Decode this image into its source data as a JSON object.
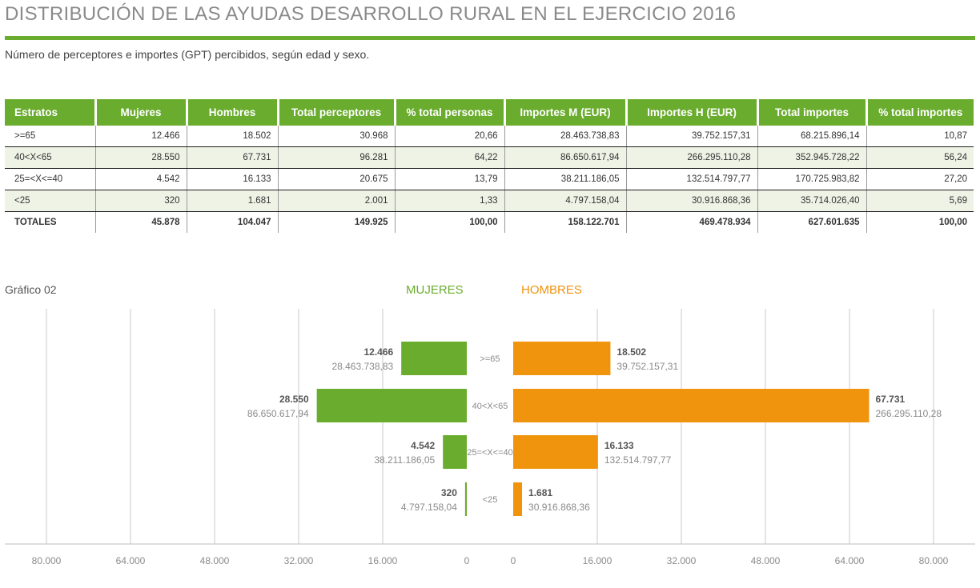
{
  "header": {
    "title": "DISTRIBUCIÓN DE LAS AYUDAS DESARROLLO RURAL EN EL EJERCICIO 2016",
    "subtitle": "Número de perceptores e importes (GPT) percibidos, según edad y sexo."
  },
  "table": {
    "columns": [
      "Estratos",
      "Mujeres",
      "Hombres",
      "Total perceptores",
      "% total personas",
      "Importes M (EUR)",
      "Importes H (EUR)",
      "Total importes",
      "% total importes"
    ],
    "rows": [
      [
        ">=65",
        "12.466",
        "18.502",
        "30.968",
        "20,66",
        "28.463.738,83",
        "39.752.157,31",
        "68.215.896,14",
        "10,87"
      ],
      [
        "40<X<65",
        "28.550",
        "67.731",
        "96.281",
        "64,22",
        "86.650.617,94",
        "266.295.110,28",
        "352.945.728,22",
        "56,24"
      ],
      [
        "25=<X<=40",
        "4.542",
        "16.133",
        "20.675",
        "13,79",
        "38.211.186,05",
        "132.514.797,77",
        "170.725.983,82",
        "27,20"
      ],
      [
        "<25",
        "320",
        "1.681",
        "2.001",
        "1,33",
        "4.797.158,04",
        "30.916.868,36",
        "35.714.026,40",
        "5,69"
      ]
    ],
    "totals": [
      "TOTALES",
      "45.878",
      "104.047",
      "149.925",
      "100,00",
      "158.122.701",
      "469.478.934",
      "627.601.635",
      "100,00"
    ]
  },
  "chart_label": "Gráfico 02",
  "colors": {
    "accent": "#6aac2e",
    "mujeres": "#6aac2e",
    "hombres": "#f0930d",
    "grid": "#c8c8c8"
  },
  "chart_data": {
    "type": "bar",
    "orientation": "horizontal",
    "layout": "back-to-back",
    "categories": [
      ">=65",
      "40<X<65",
      "25=<X<=40",
      "<25"
    ],
    "series": [
      {
        "name": "MUJERES",
        "values": [
          12466,
          28550,
          4542,
          320
        ],
        "value_labels": [
          "12.466",
          "28.550",
          "4.542",
          "320"
        ],
        "secondary_labels": [
          "28.463.738,83",
          "86.650.617,94",
          "38.211.186,05",
          "4.797.158,04"
        ]
      },
      {
        "name": "HOMBRES",
        "values": [
          18502,
          67731,
          16133,
          1681
        ],
        "value_labels": [
          "18.502",
          "67.731",
          "16.133",
          "1.681"
        ],
        "secondary_labels": [
          "39.752.157,31",
          "266.295.110,28",
          "132.514.797,77",
          "30.916.868,36"
        ]
      }
    ],
    "xlim": [
      0,
      80000
    ],
    "ticks": [
      0,
      16000,
      32000,
      48000,
      64000,
      80000
    ],
    "tick_labels": [
      "0",
      "16.000",
      "32.000",
      "48.000",
      "64.000",
      "80.000"
    ],
    "grid": true,
    "legend": "top-center"
  }
}
